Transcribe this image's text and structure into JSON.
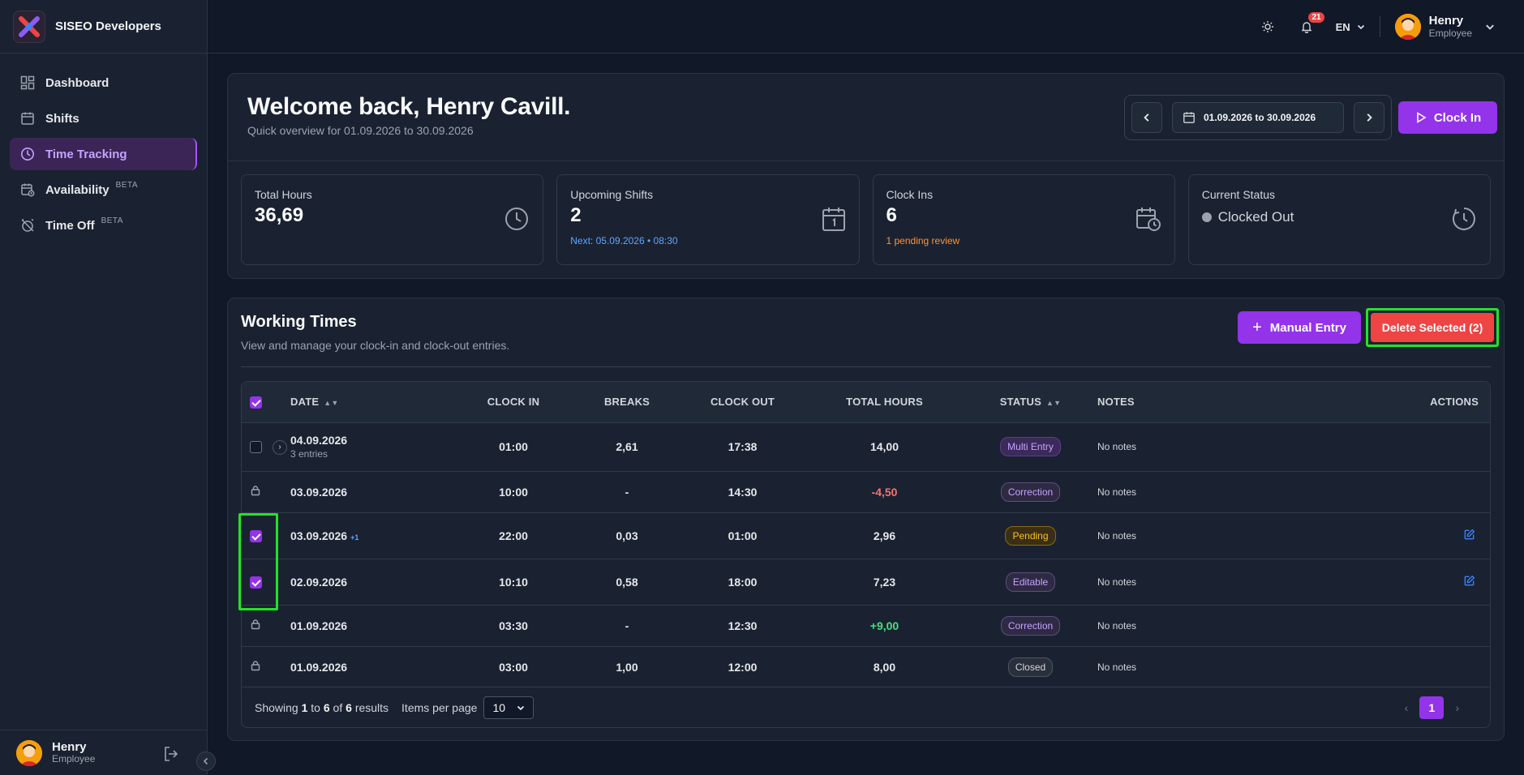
{
  "app": {
    "brand": "SISEO Developers"
  },
  "sidebar": {
    "items": [
      {
        "label": "Dashboard",
        "beta": ""
      },
      {
        "label": "Shifts",
        "beta": ""
      },
      {
        "label": "Time Tracking",
        "beta": ""
      },
      {
        "label": "Availability",
        "beta": "BETA"
      },
      {
        "label": "Time Off",
        "beta": "BETA"
      }
    ],
    "user": {
      "name": "Henry",
      "role": "Employee"
    }
  },
  "topbar": {
    "notification_count": "21",
    "language": "EN",
    "user": {
      "name": "Henry",
      "role": "Employee"
    }
  },
  "header": {
    "title": "Welcome back, Henry Cavill.",
    "subtitle": "Quick overview for 01.09.2026 to 30.09.2026",
    "date_range": "01.09.2026 to 30.09.2026",
    "clock_in_label": "Clock In"
  },
  "stats": {
    "total_hours": {
      "label": "Total Hours",
      "value": "36,69"
    },
    "upcoming_shifts": {
      "label": "Upcoming Shifts",
      "value": "2",
      "sub": "Next: 05.09.2026 • 08:30"
    },
    "clock_ins": {
      "label": "Clock Ins",
      "value": "6",
      "sub": "1 pending review"
    },
    "current_status": {
      "label": "Current Status",
      "value": "Clocked Out"
    }
  },
  "working_times": {
    "title": "Working Times",
    "subtitle": "View and manage your clock-in and clock-out entries.",
    "manual_entry_label": "Manual Entry",
    "delete_selected_label": "Delete Selected (2)",
    "columns": [
      "Date",
      "Clock In",
      "Breaks",
      "Clock Out",
      "Total Hours",
      "Status",
      "Notes",
      "Actions"
    ],
    "rows": [
      {
        "date": "04.09.2026",
        "date_sub": "3 entries",
        "clock_in": "01:00",
        "breaks": "2,61",
        "clock_out": "17:38",
        "total": "14,00",
        "status": "Multi Entry",
        "notes": "No notes"
      },
      {
        "date": "03.09.2026",
        "clock_in": "10:00",
        "breaks": "-",
        "clock_out": "14:30",
        "total": "-4,50",
        "status": "Correction",
        "notes": "No notes"
      },
      {
        "date": "03.09.2026",
        "plus": "+1",
        "clock_in": "22:00",
        "breaks": "0,03",
        "clock_out": "01:00",
        "total": "2,96",
        "status": "Pending",
        "notes": "No notes"
      },
      {
        "date": "02.09.2026",
        "clock_in": "10:10",
        "breaks": "0,58",
        "clock_out": "18:00",
        "total": "7,23",
        "status": "Editable",
        "notes": "No notes"
      },
      {
        "date": "01.09.2026",
        "clock_in": "03:30",
        "breaks": "-",
        "clock_out": "12:30",
        "total": "+9,00",
        "status": "Correction",
        "notes": "No notes"
      },
      {
        "date": "01.09.2026",
        "clock_in": "03:00",
        "breaks": "1,00",
        "clock_out": "12:00",
        "total": "8,00",
        "status": "Closed",
        "notes": "No notes"
      }
    ],
    "footer": {
      "showing": "Showing",
      "from": "1",
      "to_word": "to",
      "to": "6",
      "of_word": "of",
      "total": "6",
      "results": "results",
      "items_per_page": "Items per page",
      "per_page_value": "10",
      "current_page": "1"
    }
  },
  "colors": {
    "accent": "#9333ea",
    "danger": "#ef4444",
    "highlight": "#22e22a"
  }
}
